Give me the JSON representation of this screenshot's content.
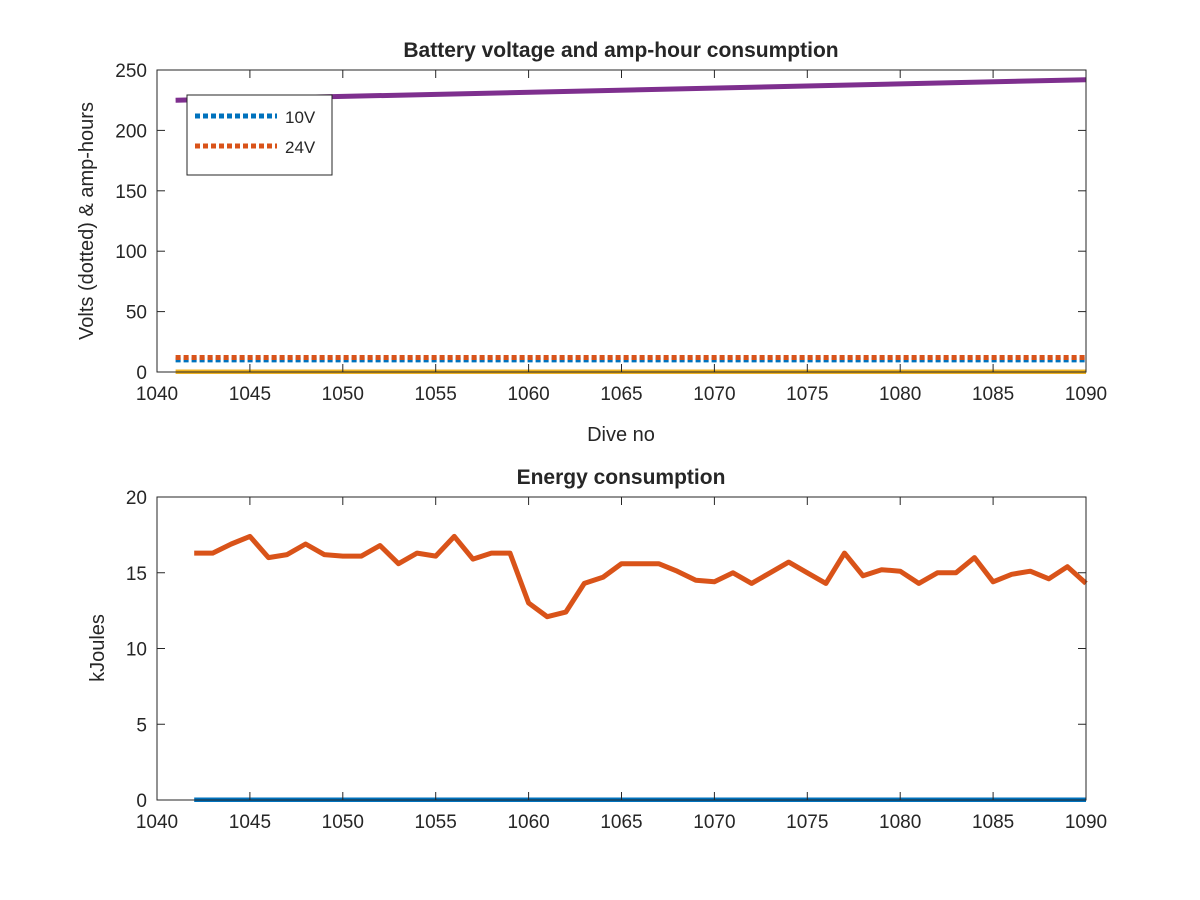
{
  "chart_data": [
    {
      "type": "line",
      "title": "Battery voltage and amp-hour consumption",
      "xlabel": "Dive no",
      "ylabel": "Volts (dotted) & amp-hours",
      "xlim": [
        1040,
        1090
      ],
      "ylim": [
        0,
        250
      ],
      "xticks": [
        1040,
        1045,
        1050,
        1055,
        1060,
        1065,
        1070,
        1075,
        1080,
        1085,
        1090
      ],
      "yticks": [
        0,
        50,
        100,
        150,
        200,
        250
      ],
      "grid": false,
      "legend_position": "top-left",
      "series": [
        {
          "name": "10V",
          "style": "dotted",
          "color": "#0072BD",
          "x": [
            1041,
            1090
          ],
          "y": [
            10,
            10
          ]
        },
        {
          "name": "24V",
          "style": "dotted",
          "color": "#D95319",
          "x": [
            1041,
            1090
          ],
          "y": [
            12,
            12
          ]
        },
        {
          "style": "solid",
          "color": "#EDB120",
          "x": [
            1041,
            1090
          ],
          "y": [
            0,
            0
          ]
        },
        {
          "style": "solid",
          "color": "#7E2F8E",
          "x": [
            1041,
            1090
          ],
          "y": [
            225,
            242
          ]
        }
      ]
    },
    {
      "type": "line",
      "title": "Energy consumption",
      "xlabel": "",
      "ylabel": "kJoules",
      "xlim": [
        1040,
        1090
      ],
      "ylim": [
        0,
        20
      ],
      "xticks": [
        1040,
        1045,
        1050,
        1055,
        1060,
        1065,
        1070,
        1075,
        1080,
        1085,
        1090
      ],
      "yticks": [
        0,
        5,
        10,
        15,
        20
      ],
      "grid": false,
      "series": [
        {
          "style": "solid",
          "color": "#0072BD",
          "x": [
            1042,
            1090
          ],
          "y": [
            0,
            0
          ]
        },
        {
          "style": "solid",
          "color": "#D95319",
          "x": [
            1042,
            1043,
            1044,
            1045,
            1046,
            1047,
            1048,
            1049,
            1050,
            1051,
            1052,
            1053,
            1054,
            1055,
            1056,
            1057,
            1058,
            1059,
            1060,
            1061,
            1062,
            1063,
            1064,
            1065,
            1066,
            1067,
            1068,
            1069,
            1070,
            1071,
            1072,
            1073,
            1074,
            1075,
            1076,
            1077,
            1078,
            1079,
            1080,
            1081,
            1082,
            1083,
            1084,
            1085,
            1086,
            1087,
            1088,
            1089,
            1090
          ],
          "y": [
            16.3,
            16.3,
            16.9,
            17.4,
            16.0,
            16.2,
            16.9,
            16.2,
            16.1,
            16.1,
            16.8,
            15.6,
            16.3,
            16.1,
            17.4,
            15.9,
            16.3,
            16.3,
            13.0,
            12.1,
            12.4,
            14.3,
            14.7,
            15.6,
            15.6,
            15.6,
            15.1,
            14.5,
            14.4,
            15.0,
            14.3,
            15.0,
            15.7,
            15.0,
            14.3,
            16.3,
            14.8,
            15.2,
            15.1,
            14.3,
            15.0,
            15.0,
            16.0,
            14.4,
            14.9,
            15.1,
            14.6,
            15.4,
            14.3
          ]
        }
      ]
    }
  ]
}
